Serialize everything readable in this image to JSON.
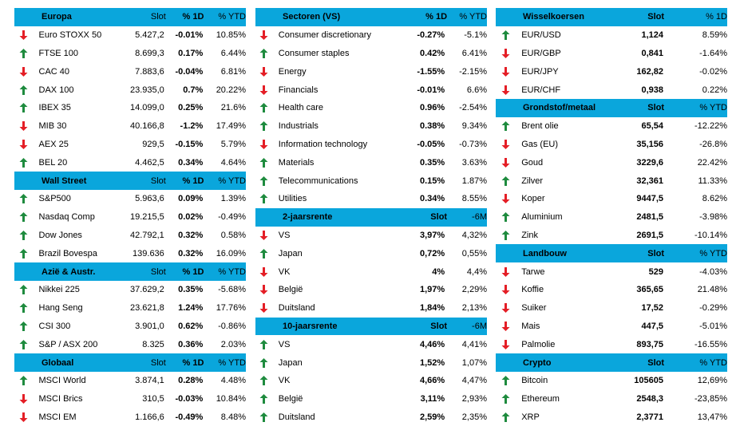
{
  "colors": {
    "header": "#0AA6DC",
    "up": "#1E8B3E",
    "down": "#E41E26"
  },
  "columns": [
    [
      {
        "type": "head",
        "name": "Europa",
        "v1": "Slot",
        "v2": "% 1D",
        "v3": "% YTD"
      },
      {
        "dir": "down",
        "name": "Euro STOXX 50",
        "v1": "5.427,2",
        "v2": "-0.01%",
        "v3": "10.85%"
      },
      {
        "dir": "up",
        "name": "FTSE 100",
        "v1": "8.699,3",
        "v2": "0.17%",
        "v3": "6.44%"
      },
      {
        "dir": "down",
        "name": "CAC 40",
        "v1": "7.883,6",
        "v2": "-0.04%",
        "v3": "6.81%"
      },
      {
        "dir": "up",
        "name": "DAX 100",
        "v1": "23.935,0",
        "v2": "0.7%",
        "v3": "20.22%"
      },
      {
        "dir": "up",
        "name": "IBEX 35",
        "v1": "14.099,0",
        "v2": "0.25%",
        "v3": "21.6%"
      },
      {
        "dir": "down",
        "name": "MIB 30",
        "v1": "40.166,8",
        "v2": "-1.2%",
        "v3": "17.49%"
      },
      {
        "dir": "down",
        "name": "AEX 25",
        "v1": "929,5",
        "v2": "-0.15%",
        "v3": "5.79%"
      },
      {
        "dir": "up",
        "name": "BEL 20",
        "v1": "4.462,5",
        "v2": "0.34%",
        "v3": "4.64%"
      },
      {
        "type": "head",
        "name": "Wall Street",
        "v1": "Slot",
        "v2": "% 1D",
        "v3": "% YTD"
      },
      {
        "dir": "up",
        "name": "S&P500",
        "v1": "5.963,6",
        "v2": "0.09%",
        "v3": "1.39%"
      },
      {
        "dir": "up",
        "name": "Nasdaq Comp",
        "v1": "19.215,5",
        "v2": "0.02%",
        "v3": "-0.49%"
      },
      {
        "dir": "up",
        "name": "Dow Jones",
        "v1": "42.792,1",
        "v2": "0.32%",
        "v3": "0.58%"
      },
      {
        "dir": "up",
        "name": "Brazil Bovespa",
        "v1": "139.636",
        "v2": "0.32%",
        "v3": "16.09%"
      },
      {
        "type": "head",
        "name": "Azië & Austr.",
        "v1": "Slot",
        "v2": "% 1D",
        "v3": "% YTD"
      },
      {
        "dir": "up",
        "name": "Nikkei 225",
        "v1": "37.629,2",
        "v2": "0.35%",
        "v3": "-5.68%"
      },
      {
        "dir": "up",
        "name": "Hang Seng",
        "v1": "23.621,8",
        "v2": "1.24%",
        "v3": "17.76%"
      },
      {
        "dir": "up",
        "name": "CSI 300",
        "v1": "3.901,0",
        "v2": "0.62%",
        "v3": "-0.86%"
      },
      {
        "dir": "up",
        "name": "S&P / ASX 200",
        "v1": "8.325",
        "v2": "0.36%",
        "v3": "2.03%"
      },
      {
        "type": "head",
        "name": "Globaal",
        "v1": "Slot",
        "v2": "% 1D",
        "v3": "% YTD"
      },
      {
        "dir": "up",
        "name": "MSCI World",
        "v1": "3.874,1",
        "v2": "0.28%",
        "v3": "4.48%"
      },
      {
        "dir": "down",
        "name": "MSCI Brics",
        "v1": "310,5",
        "v2": "-0.03%",
        "v3": "10.84%"
      },
      {
        "dir": "down",
        "name": "MSCI EM",
        "v1": "1.166,6",
        "v2": "-0.49%",
        "v3": "8.48%"
      }
    ],
    [
      {
        "type": "head",
        "name": "Sectoren (VS)",
        "v2": "% 1D",
        "v3": "% YTD"
      },
      {
        "dir": "down",
        "name": "Consumer discretionary",
        "v2": "-0.27%",
        "v3": "-5.1%"
      },
      {
        "dir": "up",
        "name": "Consumer staples",
        "v2": "0.42%",
        "v3": "6.41%"
      },
      {
        "dir": "down",
        "name": "Energy",
        "v2": "-1.55%",
        "v3": "-2.15%"
      },
      {
        "dir": "down",
        "name": "Financials",
        "v2": "-0.01%",
        "v3": "6.6%"
      },
      {
        "dir": "up",
        "name": "Health care",
        "v2": "0.96%",
        "v3": "-2.54%"
      },
      {
        "dir": "up",
        "name": "Industrials",
        "v2": "0.38%",
        "v3": "9.34%"
      },
      {
        "dir": "down",
        "name": "Information technology",
        "v2": "-0.05%",
        "v3": "-0.73%"
      },
      {
        "dir": "up",
        "name": "Materials",
        "v2": "0.35%",
        "v3": "3.63%"
      },
      {
        "dir": "up",
        "name": "Telecommunications",
        "v2": "0.15%",
        "v3": "1.87%"
      },
      {
        "dir": "up",
        "name": "Utilities",
        "v2": "0.34%",
        "v3": "8.55%"
      },
      {
        "type": "head",
        "name": "2-jaarsrente",
        "v2": "Slot",
        "v3": "-6M"
      },
      {
        "dir": "down",
        "name": "VS",
        "v2": "3,97%",
        "v3": "4,32%"
      },
      {
        "dir": "up",
        "name": "Japan",
        "v2": "0,72%",
        "v3": "0,55%"
      },
      {
        "dir": "down",
        "name": "VK",
        "v2": "4%",
        "v3": "4,4%"
      },
      {
        "dir": "down",
        "name": "België",
        "v2": "1,97%",
        "v3": "2,29%"
      },
      {
        "dir": "down",
        "name": "Duitsland",
        "v2": "1,84%",
        "v3": "2,13%"
      },
      {
        "type": "head",
        "name": "10-jaarsrente",
        "v2": "Slot",
        "v3": "-6M"
      },
      {
        "dir": "up",
        "name": "VS",
        "v2": "4,46%",
        "v3": "4,41%"
      },
      {
        "dir": "up",
        "name": "Japan",
        "v2": "1,52%",
        "v3": "1,07%"
      },
      {
        "dir": "up",
        "name": "VK",
        "v2": "4,66%",
        "v3": "4,47%"
      },
      {
        "dir": "up",
        "name": "België",
        "v2": "3,11%",
        "v3": "2,93%"
      },
      {
        "dir": "up",
        "name": "Duitsland",
        "v2": "2,59%",
        "v3": "2,35%"
      }
    ],
    [
      {
        "type": "head",
        "name": "Wisselkoersen",
        "v2": "Slot",
        "v3": "% 1D"
      },
      {
        "dir": "up",
        "name": "EUR/USD",
        "v2": "1,124",
        "v3": "8.59%"
      },
      {
        "dir": "down",
        "name": "EUR/GBP",
        "v2": "0,841",
        "v3": "-1.64%"
      },
      {
        "dir": "down",
        "name": "EUR/JPY",
        "v2": "162,82",
        "v3": "-0.02%"
      },
      {
        "dir": "down",
        "name": "EUR/CHF",
        "v2": "0,938",
        "v3": "0.22%"
      },
      {
        "type": "head",
        "name": "Grondstof/metaal",
        "v2": "Slot",
        "v3": "% YTD"
      },
      {
        "dir": "up",
        "name": "Brent olie",
        "v2": "65,54",
        "v3": "-12.22%"
      },
      {
        "dir": "down",
        "name": "Gas (EU)",
        "v2": "35,156",
        "v3": "-26.8%"
      },
      {
        "dir": "down",
        "name": "Goud",
        "v2": "3229,6",
        "v3": "22.42%"
      },
      {
        "dir": "up",
        "name": "Zilver",
        "v2": "32,361",
        "v3": "11.33%"
      },
      {
        "dir": "down",
        "name": "Koper",
        "v2": "9447,5",
        "v3": "8.62%"
      },
      {
        "dir": "up",
        "name": "Aluminium",
        "v2": "2481,5",
        "v3": "-3.98%"
      },
      {
        "dir": "up",
        "name": "Zink",
        "v2": "2691,5",
        "v3": "-10.14%"
      },
      {
        "type": "head",
        "name": "Landbouw",
        "v2": "Slot",
        "v3": "% YTD"
      },
      {
        "dir": "down",
        "name": "Tarwe",
        "v2": "529",
        "v3": "-4.03%"
      },
      {
        "dir": "down",
        "name": "Koffie",
        "v2": "365,65",
        "v3": "21.48%"
      },
      {
        "dir": "down",
        "name": "Suiker",
        "v2": "17,52",
        "v3": "-0.29%"
      },
      {
        "dir": "down",
        "name": "Mais",
        "v2": "447,5",
        "v3": "-5.01%"
      },
      {
        "dir": "down",
        "name": "Palmolie",
        "v2": "893,75",
        "v3": "-16.55%"
      },
      {
        "type": "head",
        "name": "Crypto",
        "v2": "Slot",
        "v3": "% YTD"
      },
      {
        "dir": "up",
        "name": "Bitcoin",
        "v2": "105605",
        "v3": "12,69%"
      },
      {
        "dir": "up",
        "name": "Ethereum",
        "v2": "2548,3",
        "v3": "-23,85%"
      },
      {
        "dir": "up",
        "name": "XRP",
        "v2": "2,3771",
        "v3": "13,47%"
      }
    ]
  ]
}
